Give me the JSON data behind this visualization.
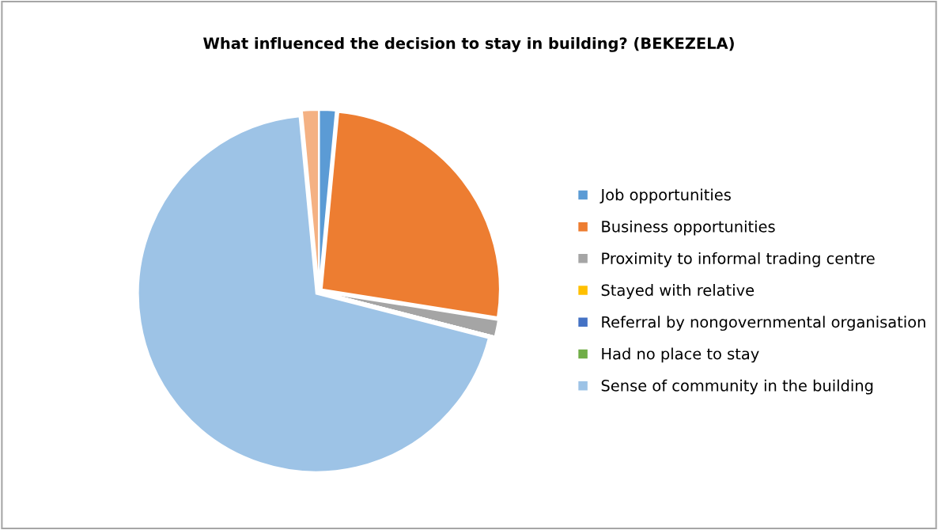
{
  "chart_data": {
    "type": "pie",
    "title": "What influenced the decision to stay in building? (BEKEZELA)",
    "categories": [
      "Job opportunities",
      "Business opportunities",
      "Proximity to informal trading centre",
      "Stayed with relative",
      "Referral by nongovernmental organisation",
      "Had no place to stay",
      "Sense of community in the building",
      null
    ],
    "values": [
      1.5,
      26,
      1.5,
      0,
      0,
      0,
      69.5,
      1.5
    ],
    "colors": [
      "#5b9bd5",
      "#ed7d31",
      "#a5a5a5",
      "#ffc000",
      "#4472c4",
      "#70ad47",
      "#9dc3e6",
      "#f4b183"
    ],
    "legend": "right"
  }
}
